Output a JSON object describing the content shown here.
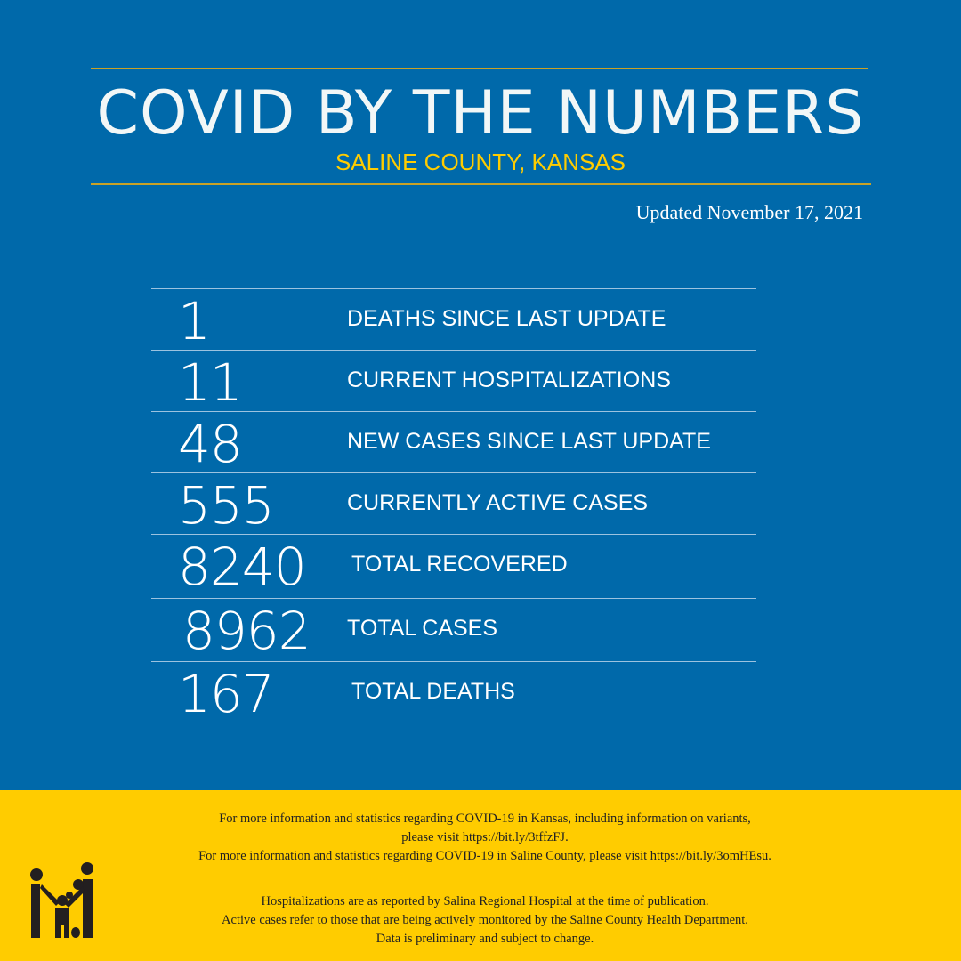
{
  "header": {
    "title": "COVID BY THE NUMBERS",
    "subtitle": "SALINE COUNTY, KANSAS",
    "updated": "Updated November 17, 2021"
  },
  "stats": [
    {
      "value": "1",
      "label": "DEATHS SINCE LAST UPDATE"
    },
    {
      "value": "11",
      "label": "CURRENT HOSPITALIZATIONS"
    },
    {
      "value": "48",
      "label": "NEW CASES SINCE LAST UPDATE"
    },
    {
      "value": "555",
      "label": "CURRENTLY ACTIVE CASES"
    },
    {
      "value": "8240",
      "label": "TOTAL RECOVERED"
    },
    {
      "value": "8962",
      "label": "TOTAL CASES"
    },
    {
      "value": "167",
      "label": "TOTAL DEATHS"
    }
  ],
  "footer": {
    "lines": [
      "For more information and statistics regarding COVID-19 in Kansas, including information on variants,",
      "please visit https://bit.ly/3tffzFJ.",
      "For more information and statistics regarding COVID-19 in Saline County, please visit  https://bit.ly/3omHEsu.",
      "Hospitalizations are as reported by Salina Regional Hospital at the time of publication.",
      "Active cases refer to those that are being actively monitored by the Saline County Health Department.",
      "Data is preliminary and subject to change."
    ],
    "logo_icon": "family-icon"
  },
  "colors": {
    "background": "#0069AA",
    "accent": "#FFCC00",
    "rule": "#C9A227"
  }
}
